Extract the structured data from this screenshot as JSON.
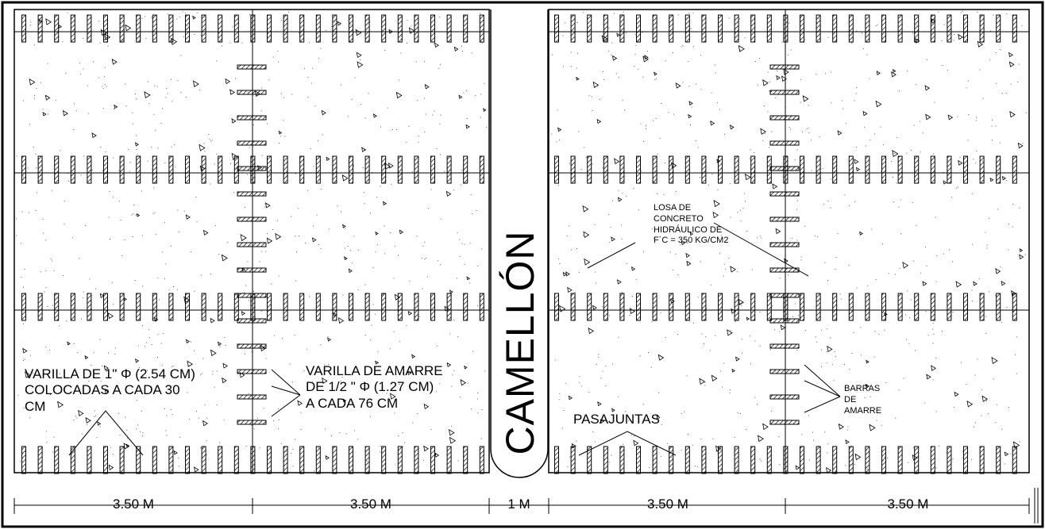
{
  "labels": {
    "camellon": "CAMELLÓN",
    "varilla_1": "VARILLA DE 1\" Φ (2.54 CM)\nCOLOCADAS A CADA 30\nCM",
    "varilla_amarre": "VARILLA DE AMARRE\nDE 1/2 \" Φ (1.27 CM)\nA CADA 76 CM",
    "pasajuntas": "PASAJUNTAS",
    "losa": "LOSA DE\nCONCRETO\nHIDRÁULICO DE\nF´C = 350 KG/CM2",
    "barras": "BARRAS\nDE\nAMARRE"
  },
  "dimensions": [
    "3.50 M",
    "3.50 M",
    "1 M",
    "3.50 M",
    "3.50 M"
  ],
  "colors": {
    "line": "#000000",
    "background": "#ffffff"
  }
}
